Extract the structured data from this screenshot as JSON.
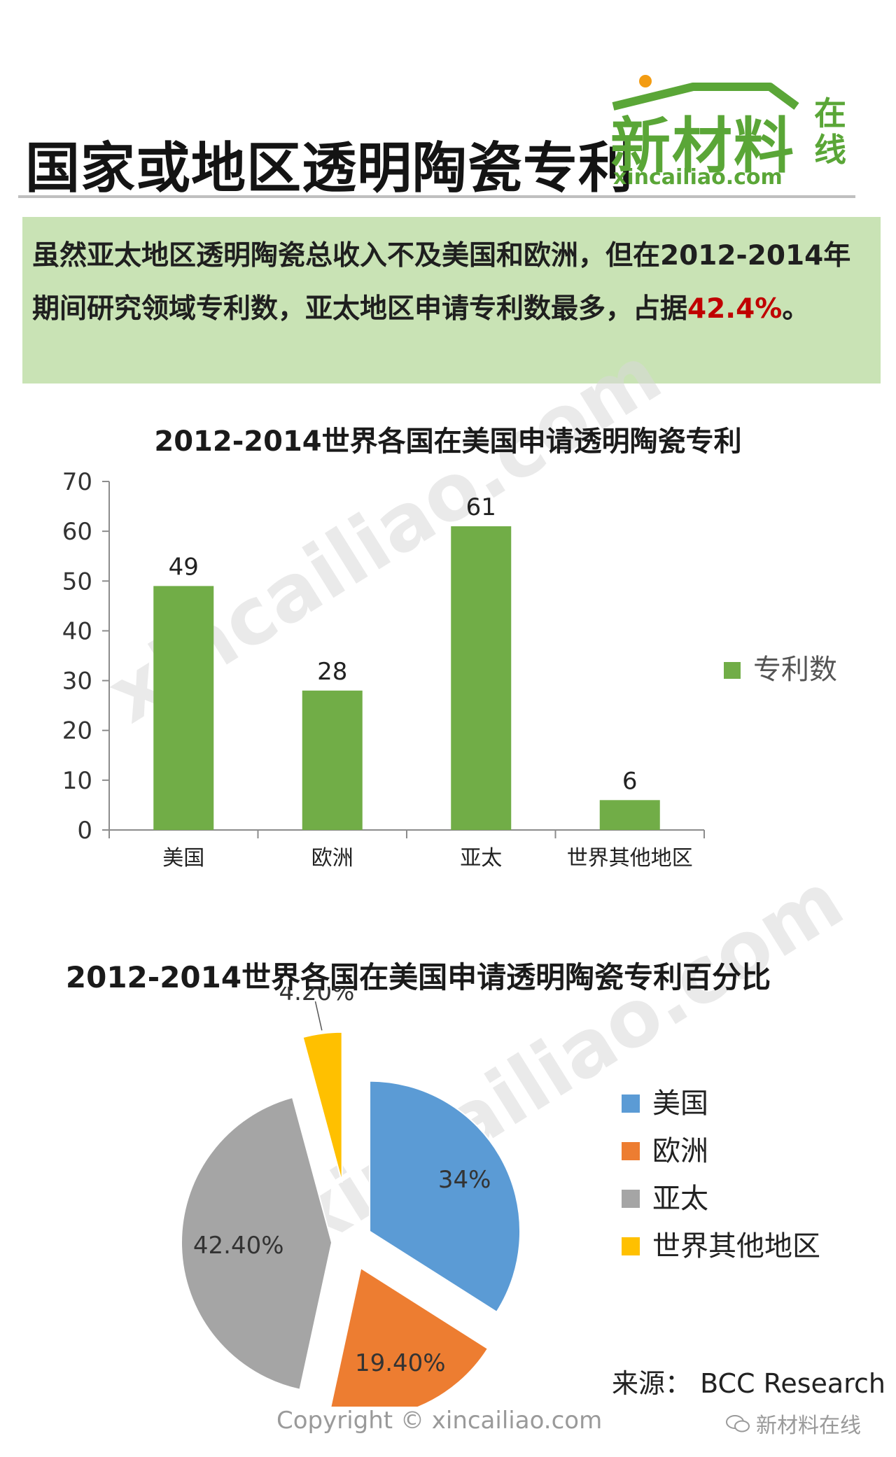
{
  "header": {
    "title": "国家或地区透明陶瓷专利",
    "logo_text": "新材料",
    "logo_online": "在线",
    "logo_url": "xincailiao.com"
  },
  "summary": {
    "text": "虽然亚太地区透明陶瓷总收入不及美国和欧洲，但在2012-2014年期间研究领域专利数，亚太地区申请专利数最多，占据",
    "highlight": "42.4%",
    "tail": "。"
  },
  "watermark": "xincailiao.com",
  "colors": {
    "bar": "#71ad47",
    "usa": "#5b9bd5",
    "europe": "#ed7d31",
    "asia": "#a5a5a5",
    "other": "#ffc000",
    "summary_bg": "#c9e3b5",
    "highlight": "#c00000",
    "brand": "#5aa637"
  },
  "chart_data": [
    {
      "type": "bar",
      "title": "2012-2014世界各国在美国申请透明陶瓷专利",
      "categories": [
        "美国",
        "欧洲",
        "亚太",
        "世界其他地区"
      ],
      "series": [
        {
          "name": "专利数",
          "values": [
            49,
            28,
            61,
            6
          ]
        }
      ],
      "data_labels": [
        "49",
        "28",
        "61",
        "6"
      ],
      "y_ticks": [
        "0",
        "10",
        "20",
        "30",
        "40",
        "50",
        "60",
        "70"
      ],
      "ylim": [
        0,
        70
      ],
      "xlabel": "",
      "ylabel": "",
      "grid": false,
      "legend": "right"
    },
    {
      "type": "pie",
      "title": "2012-2014世界各国在美国申请透明陶瓷专利百分比",
      "labels": [
        "美国",
        "欧洲",
        "亚太",
        "世界其他地区"
      ],
      "values": [
        34,
        19.4,
        42.4,
        4.2
      ],
      "data_labels": [
        "34%",
        "19.40%",
        "42.40%",
        "4.20%"
      ],
      "exploded": true,
      "legend": "right"
    }
  ],
  "footer": {
    "source": "来源： BCC Research",
    "copyright": "Copyright © xincailiao.com",
    "wechat": "新材料在线"
  }
}
